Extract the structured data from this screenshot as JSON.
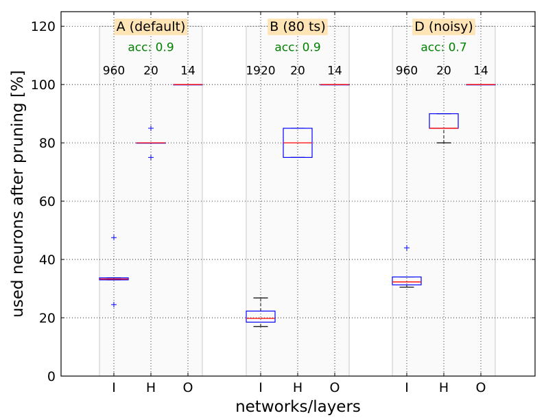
{
  "chart_data": {
    "type": "box",
    "xlabel": "networks/layers",
    "ylabel": "used neurons after pruning [%]",
    "ylim": [
      0,
      125
    ],
    "yticks": [
      0,
      20,
      40,
      60,
      80,
      100,
      120
    ],
    "grid": true,
    "colors": {
      "box": "#0000ff",
      "median": "#ff0000",
      "shade": "#fafafa",
      "shade_edge": "#c8c8c8",
      "title_bg": "#ffe4b5",
      "acc": "#008000"
    },
    "groups": [
      {
        "title": "A (default)",
        "accuracy": "acc: 0.9",
        "layers": [
          {
            "label": "I",
            "count": "960",
            "q1": 33.0,
            "median": 33.3,
            "q3": 33.7,
            "whisker_low": 33.0,
            "whisker_high": 33.7,
            "outliers": [
              47.5,
              24.5
            ]
          },
          {
            "label": "H",
            "count": "20",
            "q1": 80,
            "median": 80,
            "q3": 80,
            "whisker_low": 80,
            "whisker_high": 80,
            "outliers": [
              85,
              75
            ]
          },
          {
            "label": "O",
            "count": "14",
            "q1": 100,
            "median": 100,
            "q3": 100,
            "whisker_low": 100,
            "whisker_high": 100,
            "outliers": []
          }
        ]
      },
      {
        "title": "B (80 ts)",
        "accuracy": "acc: 0.9",
        "layers": [
          {
            "label": "I",
            "count": "1920",
            "q1": 18.5,
            "median": 19.8,
            "q3": 22.3,
            "whisker_low": 17.0,
            "whisker_high": 26.8,
            "outliers": []
          },
          {
            "label": "H",
            "count": "20",
            "q1": 75,
            "median": 80,
            "q3": 85,
            "whisker_low": 75,
            "whisker_high": 85,
            "outliers": []
          },
          {
            "label": "O",
            "count": "14",
            "q1": 100,
            "median": 100,
            "q3": 100,
            "whisker_low": 100,
            "whisker_high": 100,
            "outliers": []
          }
        ]
      },
      {
        "title": "D (noisy)",
        "accuracy": "acc: 0.7",
        "layers": [
          {
            "label": "I",
            "count": "960",
            "q1": 31.3,
            "median": 32.3,
            "q3": 34.0,
            "whisker_low": 30.5,
            "whisker_high": 34.0,
            "outliers": [
              44.0
            ]
          },
          {
            "label": "H",
            "count": "20",
            "q1": 85,
            "median": 85,
            "q3": 90,
            "whisker_low": 80,
            "whisker_high": 90,
            "outliers": []
          },
          {
            "label": "O",
            "count": "14",
            "q1": 100,
            "median": 100,
            "q3": 100,
            "whisker_low": 100,
            "whisker_high": 100,
            "outliers": []
          }
        ]
      }
    ]
  }
}
